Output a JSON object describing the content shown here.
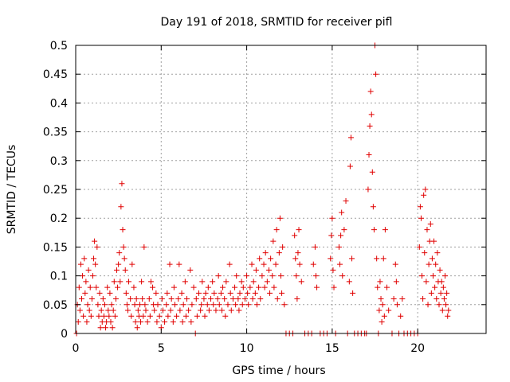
{
  "chart_data": {
    "type": "scatter",
    "title": "Day 191 of 2018, SRMTID for receiver pifl",
    "xlabel": "GPS time / hours",
    "ylabel": "SRMTID / TECUs",
    "xlim": [
      0,
      24
    ],
    "ylim": [
      0,
      0.5
    ],
    "x_ticks": [
      0,
      5,
      10,
      15,
      20
    ],
    "y_ticks": [
      0,
      0.05,
      0.1,
      0.15,
      0.2,
      0.25,
      0.3,
      0.35,
      0.4,
      0.45,
      0.5
    ],
    "x_tick_labels": [
      "0",
      "5",
      "10",
      "15",
      "20"
    ],
    "y_tick_labels": [
      "0",
      "0.05",
      "0.1",
      "0.15",
      "0.2",
      "0.25",
      "0.3",
      "0.35",
      "0.4",
      "0.45",
      "0.5"
    ],
    "grid": true,
    "marker": "+",
    "color": "#e00000",
    "series": [
      {
        "name": "SRMTID",
        "points": [
          [
            0.05,
            0.0
          ],
          [
            0.1,
            0.05
          ],
          [
            0.15,
            0.02
          ],
          [
            0.2,
            0.08
          ],
          [
            0.25,
            0.04
          ],
          [
            0.3,
            0.12
          ],
          [
            0.35,
            0.06
          ],
          [
            0.4,
            0.1
          ],
          [
            0.45,
            0.03
          ],
          [
            0.5,
            0.13
          ],
          [
            0.55,
            0.07
          ],
          [
            0.6,
            0.09
          ],
          [
            0.65,
            0.02
          ],
          [
            0.7,
            0.05
          ],
          [
            0.75,
            0.11
          ],
          [
            0.8,
            0.04
          ],
          [
            0.85,
            0.08
          ],
          [
            0.9,
            0.03
          ],
          [
            0.95,
            0.06
          ],
          [
            1.0,
            0.1
          ],
          [
            1.05,
            0.13
          ],
          [
            1.1,
            0.16
          ],
          [
            1.15,
            0.12
          ],
          [
            1.2,
            0.08
          ],
          [
            1.25,
            0.15
          ],
          [
            1.3,
            0.05
          ],
          [
            1.35,
            0.03
          ],
          [
            1.4,
            0.07
          ],
          [
            1.45,
            0.01
          ],
          [
            1.5,
            0.04
          ],
          [
            1.55,
            0.02
          ],
          [
            1.6,
            0.06
          ],
          [
            1.65,
            0.03
          ],
          [
            1.7,
            0.05
          ],
          [
            1.75,
            0.01
          ],
          [
            1.8,
            0.02
          ],
          [
            1.85,
            0.08
          ],
          [
            1.9,
            0.04
          ],
          [
            1.95,
            0.03
          ],
          [
            2.0,
            0.07
          ],
          [
            2.05,
            0.02
          ],
          [
            2.1,
            0.05
          ],
          [
            2.15,
            0.01
          ],
          [
            2.2,
            0.04
          ],
          [
            2.25,
            0.09
          ],
          [
            2.3,
            0.03
          ],
          [
            2.35,
            0.06
          ],
          [
            2.4,
            0.11
          ],
          [
            2.45,
            0.08
          ],
          [
            2.5,
            0.12
          ],
          [
            2.55,
            0.14
          ],
          [
            2.6,
            0.09
          ],
          [
            2.65,
            0.22
          ],
          [
            2.7,
            0.26
          ],
          [
            2.75,
            0.18
          ],
          [
            2.8,
            0.15
          ],
          [
            2.85,
            0.13
          ],
          [
            2.9,
            0.11
          ],
          [
            2.95,
            0.07
          ],
          [
            3.0,
            0.05
          ],
          [
            3.05,
            0.04
          ],
          [
            3.1,
            0.09
          ],
          [
            3.2,
            0.06
          ],
          [
            3.25,
            0.03
          ],
          [
            3.3,
            0.12
          ],
          [
            3.4,
            0.08
          ],
          [
            3.45,
            0.05
          ],
          [
            3.5,
            0.02
          ],
          [
            3.55,
            0.06
          ],
          [
            3.6,
            0.01
          ],
          [
            3.65,
            0.04
          ],
          [
            3.7,
            0.03
          ],
          [
            3.75,
            0.05
          ],
          [
            3.8,
            0.02
          ],
          [
            3.85,
            0.09
          ],
          [
            3.9,
            0.06
          ],
          [
            3.95,
            0.03
          ],
          [
            4.0,
            0.15
          ],
          [
            4.05,
            0.05
          ],
          [
            4.1,
            0.04
          ],
          [
            4.2,
            0.02
          ],
          [
            4.3,
            0.06
          ],
          [
            4.35,
            0.03
          ],
          [
            4.4,
            0.09
          ],
          [
            4.5,
            0.08
          ],
          [
            4.55,
            0.05
          ],
          [
            4.6,
            0.04
          ],
          [
            4.7,
            0.07
          ],
          [
            4.75,
            0.02
          ],
          [
            4.8,
            0.05
          ],
          [
            4.9,
            0.03
          ],
          [
            5.0,
            0.01
          ],
          [
            5.05,
            0.06
          ],
          [
            5.1,
            0.04
          ],
          [
            5.2,
            0.02
          ],
          [
            5.3,
            0.05
          ],
          [
            5.35,
            0.07
          ],
          [
            5.4,
            0.03
          ],
          [
            5.5,
            0.12
          ],
          [
            5.55,
            0.04
          ],
          [
            5.6,
            0.06
          ],
          [
            5.7,
            0.02
          ],
          [
            5.75,
            0.08
          ],
          [
            5.8,
            0.05
          ],
          [
            5.9,
            0.03
          ],
          [
            6.0,
            0.06
          ],
          [
            6.05,
            0.12
          ],
          [
            6.1,
            0.04
          ],
          [
            6.2,
            0.07
          ],
          [
            6.25,
            0.02
          ],
          [
            6.3,
            0.05
          ],
          [
            6.4,
            0.09
          ],
          [
            6.45,
            0.03
          ],
          [
            6.5,
            0.06
          ],
          [
            6.6,
            0.04
          ],
          [
            6.7,
            0.11
          ],
          [
            6.75,
            0.02
          ],
          [
            6.8,
            0.05
          ],
          [
            6.9,
            0.08
          ],
          [
            7.0,
            0.0
          ],
          [
            7.05,
            0.06
          ],
          [
            7.1,
            0.03
          ],
          [
            7.2,
            0.07
          ],
          [
            7.3,
            0.04
          ],
          [
            7.35,
            0.05
          ],
          [
            7.4,
            0.09
          ],
          [
            7.5,
            0.06
          ],
          [
            7.55,
            0.03
          ],
          [
            7.6,
            0.07
          ],
          [
            7.7,
            0.05
          ],
          [
            7.75,
            0.08
          ],
          [
            7.8,
            0.04
          ],
          [
            7.9,
            0.06
          ],
          [
            8.0,
            0.09
          ],
          [
            8.05,
            0.05
          ],
          [
            8.1,
            0.07
          ],
          [
            8.2,
            0.04
          ],
          [
            8.3,
            0.06
          ],
          [
            8.35,
            0.1
          ],
          [
            8.4,
            0.05
          ],
          [
            8.5,
            0.07
          ],
          [
            8.55,
            0.04
          ],
          [
            8.6,
            0.08
          ],
          [
            8.7,
            0.06
          ],
          [
            8.75,
            0.03
          ],
          [
            8.8,
            0.09
          ],
          [
            8.9,
            0.05
          ],
          [
            9.0,
            0.12
          ],
          [
            9.05,
            0.07
          ],
          [
            9.1,
            0.04
          ],
          [
            9.2,
            0.06
          ],
          [
            9.3,
            0.08
          ],
          [
            9.35,
            0.05
          ],
          [
            9.4,
            0.1
          ],
          [
            9.5,
            0.06
          ],
          [
            9.55,
            0.04
          ],
          [
            9.6,
            0.07
          ],
          [
            9.7,
            0.09
          ],
          [
            9.75,
            0.05
          ],
          [
            9.8,
            0.08
          ],
          [
            9.9,
            0.06
          ],
          [
            10.0,
            0.1
          ],
          [
            10.05,
            0.07
          ],
          [
            10.1,
            0.05
          ],
          [
            10.2,
            0.08
          ],
          [
            10.3,
            0.12
          ],
          [
            10.35,
            0.06
          ],
          [
            10.4,
            0.09
          ],
          [
            10.5,
            0.07
          ],
          [
            10.55,
            0.11
          ],
          [
            10.6,
            0.05
          ],
          [
            10.7,
            0.08
          ],
          [
            10.75,
            0.13
          ],
          [
            10.8,
            0.06
          ],
          [
            10.9,
            0.1
          ],
          [
            11.0,
            0.12
          ],
          [
            11.05,
            0.08
          ],
          [
            11.1,
            0.14
          ],
          [
            11.2,
            0.09
          ],
          [
            11.3,
            0.11
          ],
          [
            11.35,
            0.07
          ],
          [
            11.4,
            0.13
          ],
          [
            11.5,
            0.1
          ],
          [
            11.55,
            0.16
          ],
          [
            11.6,
            0.08
          ],
          [
            11.7,
            0.12
          ],
          [
            11.75,
            0.18
          ],
          [
            11.8,
            0.06
          ],
          [
            11.9,
            0.14
          ],
          [
            11.95,
            0.2
          ],
          [
            12.0,
            0.1
          ],
          [
            12.05,
            0.07
          ],
          [
            12.1,
            0.15
          ],
          [
            12.2,
            0.05
          ],
          [
            12.3,
            0.0
          ],
          [
            12.5,
            0.0
          ],
          [
            12.7,
            0.0
          ],
          [
            12.8,
            0.17
          ],
          [
            12.85,
            0.13
          ],
          [
            12.9,
            0.1
          ],
          [
            12.95,
            0.06
          ],
          [
            13.0,
            0.14
          ],
          [
            13.05,
            0.18
          ],
          [
            13.1,
            0.12
          ],
          [
            13.2,
            0.09
          ],
          [
            13.4,
            0.0
          ],
          [
            13.6,
            0.0
          ],
          [
            13.8,
            0.0
          ],
          [
            13.9,
            0.12
          ],
          [
            14.0,
            0.15
          ],
          [
            14.05,
            0.1
          ],
          [
            14.1,
            0.08
          ],
          [
            14.3,
            0.0
          ],
          [
            14.5,
            0.0
          ],
          [
            14.7,
            0.0
          ],
          [
            14.9,
            0.13
          ],
          [
            14.95,
            0.17
          ],
          [
            15.0,
            0.2
          ],
          [
            15.05,
            0.11
          ],
          [
            15.1,
            0.08
          ],
          [
            15.2,
            0.0
          ],
          [
            15.4,
            0.15
          ],
          [
            15.45,
            0.12
          ],
          [
            15.5,
            0.17
          ],
          [
            15.55,
            0.21
          ],
          [
            15.6,
            0.1
          ],
          [
            15.7,
            0.18
          ],
          [
            15.8,
            0.23
          ],
          [
            15.9,
            0.0
          ],
          [
            16.0,
            0.09
          ],
          [
            16.05,
            0.29
          ],
          [
            16.1,
            0.34
          ],
          [
            16.15,
            0.13
          ],
          [
            16.2,
            0.07
          ],
          [
            16.3,
            0.0
          ],
          [
            16.5,
            0.0
          ],
          [
            16.7,
            0.0
          ],
          [
            16.9,
            0.0
          ],
          [
            17.0,
            0.0
          ],
          [
            17.1,
            0.25
          ],
          [
            17.15,
            0.31
          ],
          [
            17.2,
            0.36
          ],
          [
            17.25,
            0.42
          ],
          [
            17.3,
            0.38
          ],
          [
            17.35,
            0.28
          ],
          [
            17.4,
            0.22
          ],
          [
            17.45,
            0.18
          ],
          [
            17.5,
            0.5
          ],
          [
            17.55,
            0.45
          ],
          [
            17.6,
            0.13
          ],
          [
            17.65,
            0.08
          ],
          [
            17.7,
            0.0
          ],
          [
            17.75,
            0.04
          ],
          [
            17.8,
            0.09
          ],
          [
            17.85,
            0.06
          ],
          [
            17.9,
            0.02
          ],
          [
            17.95,
            0.05
          ],
          [
            18.0,
            0.13
          ],
          [
            18.05,
            0.03
          ],
          [
            18.1,
            0.18
          ],
          [
            18.2,
            0.08
          ],
          [
            18.3,
            0.04
          ],
          [
            18.5,
            0.0
          ],
          [
            18.6,
            0.06
          ],
          [
            18.7,
            0.12
          ],
          [
            18.75,
            0.09
          ],
          [
            18.8,
            0.05
          ],
          [
            18.9,
            0.0
          ],
          [
            19.0,
            0.03
          ],
          [
            19.1,
            0.06
          ],
          [
            19.2,
            0.0
          ],
          [
            19.4,
            0.0
          ],
          [
            19.6,
            0.0
          ],
          [
            19.8,
            0.0
          ],
          [
            20.0,
            0.0
          ],
          [
            20.1,
            0.15
          ],
          [
            20.15,
            0.22
          ],
          [
            20.2,
            0.2
          ],
          [
            20.25,
            0.1
          ],
          [
            20.3,
            0.06
          ],
          [
            20.35,
            0.24
          ],
          [
            20.4,
            0.14
          ],
          [
            20.45,
            0.25
          ],
          [
            20.5,
            0.09
          ],
          [
            20.55,
            0.18
          ],
          [
            20.6,
            0.05
          ],
          [
            20.65,
            0.12
          ],
          [
            20.7,
            0.16
          ],
          [
            20.75,
            0.19
          ],
          [
            20.8,
            0.07
          ],
          [
            20.85,
            0.13
          ],
          [
            20.9,
            0.1
          ],
          [
            20.95,
            0.16
          ],
          [
            21.0,
            0.08
          ],
          [
            21.05,
            0.12
          ],
          [
            21.1,
            0.06
          ],
          [
            21.15,
            0.14
          ],
          [
            21.2,
            0.09
          ],
          [
            21.25,
            0.05
          ],
          [
            21.3,
            0.11
          ],
          [
            21.35,
            0.07
          ],
          [
            21.4,
            0.09
          ],
          [
            21.45,
            0.04
          ],
          [
            21.5,
            0.08
          ],
          [
            21.55,
            0.06
          ],
          [
            21.6,
            0.1
          ],
          [
            21.65,
            0.05
          ],
          [
            21.7,
            0.07
          ],
          [
            21.75,
            0.03
          ],
          [
            21.8,
            0.04
          ]
        ]
      }
    ]
  }
}
